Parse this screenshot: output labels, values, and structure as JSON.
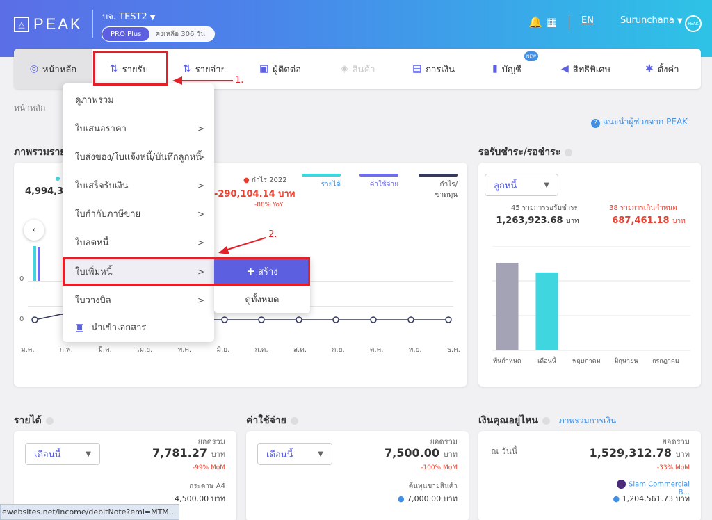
{
  "header": {
    "logo_text": "PEAK",
    "company": "บจ. TEST2",
    "plan": "PRO Plus",
    "remaining": "คงเหลือ 306 วัน",
    "language": "EN",
    "user": "Surunchana",
    "avatar_text": "PEAK"
  },
  "nav": {
    "home": "หน้าหลัก",
    "income": "รายรับ",
    "expense": "รายจ่าย",
    "contacts": "ผู้ติดต่อ",
    "products": "สินค้า",
    "finance": "การเงิน",
    "accounting": "บัญชี",
    "new_badge": "NEW",
    "privileges": "สิทธิพิเศษ",
    "settings": "ตั้งค่า"
  },
  "breadcrumb": "หน้าหลัก",
  "help_link": "แนะนำผู้ช่วยจาก PEAK",
  "annotations": {
    "step1": "1.",
    "step2": "2."
  },
  "dropdown": {
    "items": [
      {
        "label": "ดูภาพรวม",
        "arrow": ""
      },
      {
        "label": "ใบเสนอราคา",
        "arrow": ">"
      },
      {
        "label": "ใบส่งของ/ใบแจ้งหนี้/บันทึกลูกหนี้",
        "arrow": ">"
      },
      {
        "label": "ใบเสร็จรับเงิน",
        "arrow": ">"
      },
      {
        "label": "ใบกำกับภาษีขาย",
        "arrow": ">"
      },
      {
        "label": "ใบลดหนี้",
        "arrow": ">"
      },
      {
        "label": "ใบเพิ่มหนี้",
        "arrow": ">"
      },
      {
        "label": "ใบวางบิล",
        "arrow": ">"
      }
    ],
    "import_label": "นำเข้าเอกสาร",
    "submenu": {
      "create": "สร้าง",
      "view_all": "ดูทั้งหมด"
    }
  },
  "overview": {
    "title": "ภาพรวมราย",
    "left_value": "4,994,37",
    "profit_legend": "กำไร 2022",
    "profit_value": "-290,104.14 บาท",
    "profit_yoy": "-88% YoY",
    "legend": [
      "รายได้",
      "ค่าใช้จ่าย",
      "กำไร/ขาดทุน"
    ],
    "y_zero_bar": "0",
    "y_zero_line": "0",
    "months": [
      "ม.ค.",
      "ก.พ.",
      "มี.ค.",
      "เม.ย.",
      "พ.ค.",
      "มิ.ย.",
      "ก.ค.",
      "ส.ค.",
      "ก.ย.",
      "ต.ค.",
      "พ.ย.",
      "ธ.ค."
    ]
  },
  "receivable": {
    "title": "รอรับชำระ/รอชำระ",
    "select": "ลูกหนี้",
    "pending_label": "45 รายการรอรับชำระ",
    "pending_value": "1,263,923.68",
    "overdue_label": "38 รายการเกินกำหนด",
    "overdue_value": "687,461.18",
    "unit": "บาท",
    "chart_data": {
      "type": "bar",
      "categories": [
        "พ้นกำหนด",
        "เดือนนี้",
        "พฤษภาคม",
        "มิถุนายน",
        "กรกฎาคม"
      ],
      "values": [
        1,
        0.89,
        0,
        0,
        0
      ],
      "colors": [
        "#a3a3b5",
        "#3fd6e0",
        "#3fd6e0",
        "#3fd6e0",
        "#3fd6e0"
      ]
    }
  },
  "income_card": {
    "title": "รายได้",
    "select": "เดือนนี้",
    "total_label": "ยอดรวม",
    "total_value": "7,781.27",
    "unit": "บาท",
    "change": "-99% MoM",
    "sub_label": "กระดาษ A4",
    "sub_value": "4,500.00 บาท"
  },
  "expense_card": {
    "title": "ค่าใช้จ่าย",
    "select": "เดือนนี้",
    "total_label": "ยอดรวม",
    "total_value": "7,500.00",
    "unit": "บาท",
    "change": "-100% MoM",
    "sub_label": "ต้นทุนขายสินค้า",
    "sub_value": "7,000.00 บาท"
  },
  "money_card": {
    "title": "เงินคุณอยู่ไหน",
    "link": "ภาพรวมการเงิน",
    "as_of": "ณ วันนี้",
    "total_label": "ยอดรวม",
    "total_value": "1,529,312.78",
    "unit": "บาท",
    "change": "-33% MoM",
    "bank": "Siam Commercial B...",
    "bank_value": "1,204,561.73 บาท"
  },
  "status_url": "ewebsites.net/income/debitNote?emi=MTM..."
}
